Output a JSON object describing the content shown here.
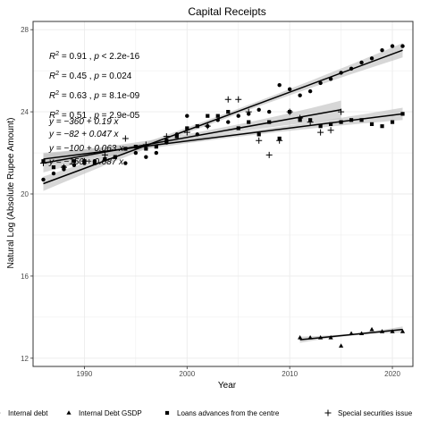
{
  "chart_data": {
    "type": "scatter",
    "title": "Capital Receipts",
    "xlabel": "Year",
    "ylabel": "Natural Log (Absolute Rupee Amount)",
    "xlim": [
      1985,
      2022
    ],
    "ylim": [
      11.6,
      28.4
    ],
    "xticks": [
      1990,
      2000,
      2010,
      2020
    ],
    "yticks": [
      12,
      16,
      20,
      24,
      28
    ],
    "grid": true,
    "legend_position": "bottom",
    "colors": {
      "ink": "#000000",
      "band": "#bdbdbd",
      "panel_border": "#333333",
      "grid": "#ebebeb"
    },
    "series": [
      {
        "name": "Internal debt",
        "marker": "circle",
        "fit": {
          "start": [
            1986,
            20.5
          ],
          "end": [
            2021,
            27.0
          ],
          "band": 0.35
        },
        "points": [
          [
            1986,
            20.7
          ],
          [
            1987,
            21.0
          ],
          [
            1988,
            21.2
          ],
          [
            1989,
            21.4
          ],
          [
            1990,
            21.5
          ],
          [
            1991,
            21.6
          ],
          [
            1992,
            21.7
          ],
          [
            1993,
            21.8
          ],
          [
            1994,
            21.5
          ],
          [
            1995,
            22.0
          ],
          [
            1996,
            21.8
          ],
          [
            1997,
            22.0
          ],
          [
            1998,
            22.5
          ],
          [
            1999,
            22.9
          ],
          [
            2000,
            23.8
          ],
          [
            2001,
            22.9
          ],
          [
            2002,
            23.3
          ],
          [
            2003,
            23.6
          ],
          [
            2004,
            23.5
          ],
          [
            2005,
            23.8
          ],
          [
            2006,
            23.9
          ],
          [
            2007,
            24.1
          ],
          [
            2008,
            24.0
          ],
          [
            2009,
            25.3
          ],
          [
            2010,
            25.1
          ],
          [
            2011,
            24.8
          ],
          [
            2012,
            25.0
          ],
          [
            2013,
            25.4
          ],
          [
            2014,
            25.6
          ],
          [
            2015,
            25.9
          ],
          [
            2016,
            26.1
          ],
          [
            2017,
            26.4
          ],
          [
            2018,
            26.6
          ],
          [
            2019,
            27.0
          ],
          [
            2020,
            27.2
          ],
          [
            2021,
            27.2
          ]
        ]
      },
      {
        "name": "Internal Debt  GSDP",
        "marker": "triangle",
        "fit": {
          "start": [
            2011,
            12.9
          ],
          "end": [
            2021,
            13.4
          ],
          "band": 0.15
        },
        "points": [
          [
            2011,
            13.0
          ],
          [
            2012,
            13.0
          ],
          [
            2013,
            13.0
          ],
          [
            2014,
            13.0
          ],
          [
            2015,
            12.6
          ],
          [
            2016,
            13.2
          ],
          [
            2017,
            13.2
          ],
          [
            2018,
            13.4
          ],
          [
            2019,
            13.3
          ],
          [
            2020,
            13.3
          ],
          [
            2021,
            13.3
          ]
        ]
      },
      {
        "name": "Loans   advances   from the centre",
        "marker": "square",
        "fit": {
          "start": [
            1986,
            21.7
          ],
          "end": [
            2021,
            23.9
          ],
          "band": 0.3
        },
        "points": [
          [
            1986,
            21.6
          ],
          [
            1987,
            21.3
          ],
          [
            1988,
            21.3
          ],
          [
            1989,
            21.6
          ],
          [
            1990,
            21.6
          ],
          [
            1991,
            21.5
          ],
          [
            1992,
            21.7
          ],
          [
            1993,
            21.8
          ],
          [
            1994,
            22.2
          ],
          [
            1995,
            22.3
          ],
          [
            1996,
            22.2
          ],
          [
            1997,
            22.3
          ],
          [
            1998,
            22.6
          ],
          [
            1999,
            22.8
          ],
          [
            2000,
            23.2
          ],
          [
            2001,
            23.3
          ],
          [
            2002,
            23.8
          ],
          [
            2003,
            23.8
          ],
          [
            2004,
            24.0
          ],
          [
            2005,
            23.2
          ],
          [
            2006,
            23.5
          ],
          [
            2007,
            22.9
          ],
          [
            2008,
            23.5
          ],
          [
            2009,
            22.7
          ],
          [
            2010,
            24.0
          ],
          [
            2011,
            23.6
          ],
          [
            2012,
            23.6
          ],
          [
            2013,
            23.3
          ],
          [
            2014,
            23.4
          ],
          [
            2015,
            23.5
          ],
          [
            2016,
            23.6
          ],
          [
            2017,
            23.6
          ],
          [
            2018,
            23.4
          ],
          [
            2019,
            23.3
          ],
          [
            2020,
            23.5
          ],
          [
            2021,
            23.9
          ]
        ]
      },
      {
        "name": "Special securities  issue",
        "marker": "plus",
        "fit": {
          "start": [
            1986,
            21.5
          ],
          "end": [
            2015,
            24.1
          ],
          "band": 0.45
        },
        "points": [
          [
            1986,
            21.5
          ],
          [
            1988,
            21.3
          ],
          [
            1990,
            21.6
          ],
          [
            1992,
            21.9
          ],
          [
            1994,
            22.7
          ],
          [
            1996,
            22.4
          ],
          [
            1998,
            22.8
          ],
          [
            2000,
            23.0
          ],
          [
            2002,
            23.3
          ],
          [
            2004,
            24.6
          ],
          [
            2005,
            24.6
          ],
          [
            2006,
            24.0
          ],
          [
            2007,
            22.6
          ],
          [
            2008,
            21.9
          ],
          [
            2009,
            22.6
          ],
          [
            2010,
            24.0
          ],
          [
            2011,
            23.7
          ],
          [
            2012,
            23.5
          ],
          [
            2013,
            23.0
          ],
          [
            2014,
            23.1
          ],
          [
            2015,
            24.0
          ]
        ]
      }
    ],
    "annotations": [
      {
        "r2": "0.91",
        "p": "< 2.2e-16"
      },
      {
        "r2": "0.45",
        "p": "= 0.024"
      },
      {
        "r2": "0.63",
        "p": "= 8.1e-09"
      },
      {
        "r2": "0.51",
        "p": "= 2.9e-05"
      }
    ],
    "equations": [
      "y = −360 + 0.19 x",
      "y = −82 + 0.047 x",
      "y = −100 + 0.063 x",
      "y = −150 + 0.087 x"
    ]
  }
}
